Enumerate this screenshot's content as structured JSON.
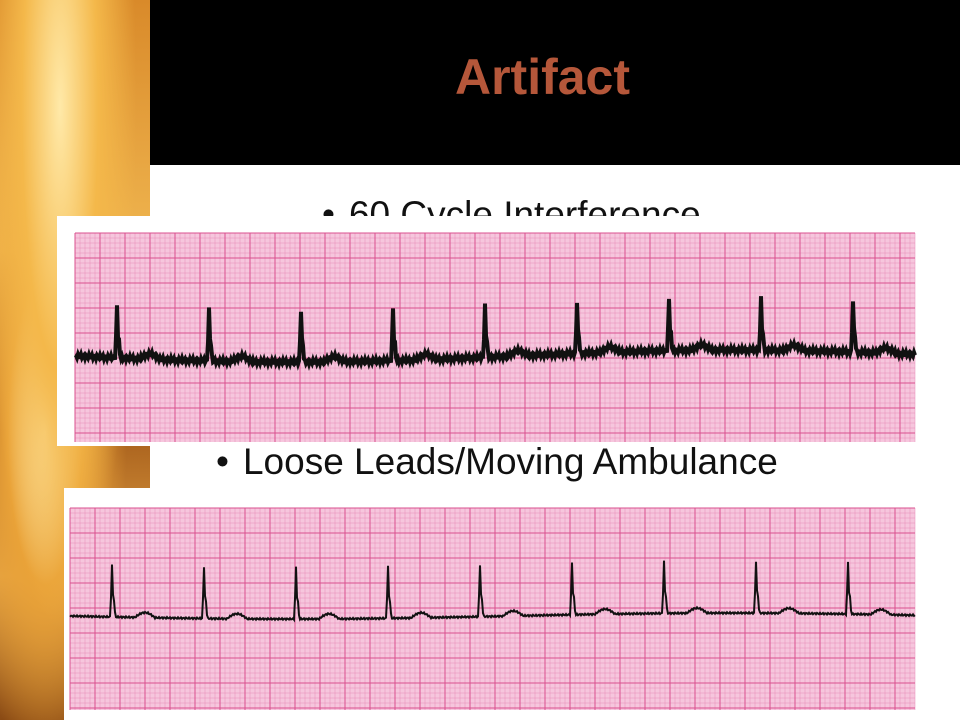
{
  "header": {
    "title": "Artifact"
  },
  "bullets": [
    "60 Cycle Interference",
    "Loose Leads/Moving Ambulance"
  ]
}
